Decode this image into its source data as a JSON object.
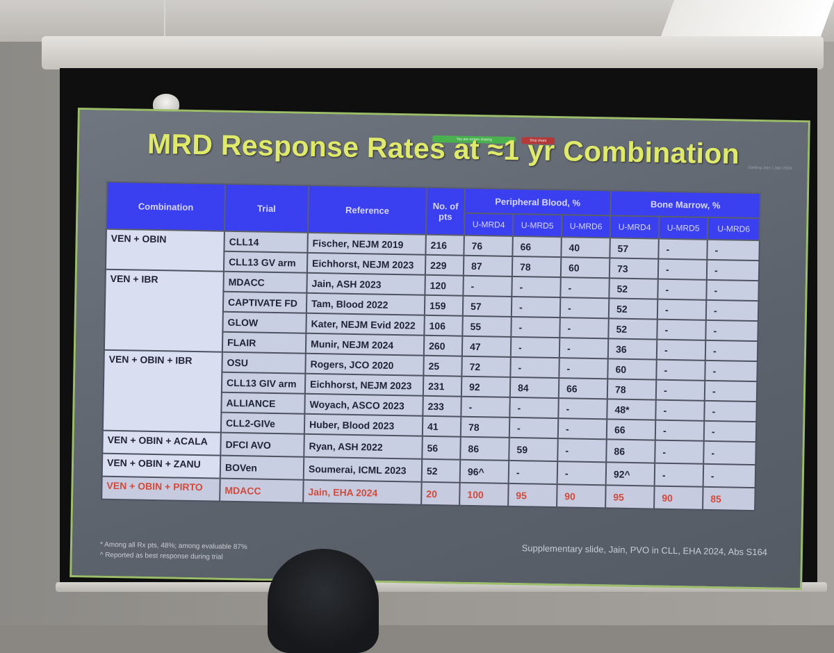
{
  "slide": {
    "title": "MRD Response Rates at ≈1 yr Combination",
    "badge_green": "You are screen sharing",
    "badge_red": "Stop share",
    "corner_note": "Getting Jain | Jain 2024",
    "footnote_1": "* Among all Rx pts, 48%; among evaluable 87%",
    "footnote_2": "^ Reported as best response during trial",
    "supplementary": "Supplementary slide, Jain, PVO in CLL, EHA 2024, Abs S164"
  },
  "table": {
    "headers": {
      "combination": "Combination",
      "trial": "Trial",
      "reference": "Reference",
      "no_of_pts": "No. of pts",
      "peripheral_blood": "Peripheral Blood, %",
      "bone_marrow": "Bone Marrow, %",
      "pb_umrd4": "U-MRD4",
      "pb_umrd5": "U-MRD5",
      "pb_umrd6": "U-MRD6",
      "bm_umrd4": "U-MRD4",
      "bm_umrd5": "U-MRD5",
      "bm_umrd6": "U-MRD6"
    },
    "groups": {
      "g1": "VEN + OBIN",
      "g2": "VEN + IBR",
      "g3": "VEN + OBIN + IBR",
      "g4": "VEN + OBIN + ACALA",
      "g5": "VEN + OBIN + ZANU",
      "g6": "VEN + OBIN + PIRTO"
    },
    "rows": {
      "r1": {
        "trial": "CLL14",
        "ref": "Fischer, NEJM 2019",
        "n": "216",
        "pb4": "76",
        "pb5": "66",
        "pb6": "40",
        "bm4": "57",
        "bm5": "-",
        "bm6": "-"
      },
      "r2": {
        "trial": "CLL13 GV arm",
        "ref": "Eichhorst, NEJM 2023",
        "n": "229",
        "pb4": "87",
        "pb5": "78",
        "pb6": "60",
        "bm4": "73",
        "bm5": "-",
        "bm6": "-"
      },
      "r3": {
        "trial": "MDACC",
        "ref": "Jain, ASH 2023",
        "n": "120",
        "pb4": "-",
        "pb5": "-",
        "pb6": "-",
        "bm4": "52",
        "bm5": "-",
        "bm6": "-"
      },
      "r4": {
        "trial": "CAPTIVATE FD",
        "ref": "Tam, Blood 2022",
        "n": "159",
        "pb4": "57",
        "pb5": "-",
        "pb6": "-",
        "bm4": "52",
        "bm5": "-",
        "bm6": "-"
      },
      "r5": {
        "trial": "GLOW",
        "ref": "Kater, NEJM Evid 2022",
        "n": "106",
        "pb4": "55",
        "pb5": "-",
        "pb6": "-",
        "bm4": "52",
        "bm5": "-",
        "bm6": "-"
      },
      "r6": {
        "trial": "FLAIR",
        "ref": "Munir, NEJM 2024",
        "n": "260",
        "pb4": "47",
        "pb5": "-",
        "pb6": "-",
        "bm4": "36",
        "bm5": "-",
        "bm6": "-"
      },
      "r7": {
        "trial": "OSU",
        "ref": "Rogers, JCO 2020",
        "n": "25",
        "pb4": "72",
        "pb5": "-",
        "pb6": "-",
        "bm4": "60",
        "bm5": "-",
        "bm6": "-"
      },
      "r8": {
        "trial": "CLL13 GIV arm",
        "ref": "Eichhorst, NEJM 2023",
        "n": "231",
        "pb4": "92",
        "pb5": "84",
        "pb6": "66",
        "bm4": "78",
        "bm5": "-",
        "bm6": "-"
      },
      "r9": {
        "trial": "ALLIANCE",
        "ref": "Woyach, ASCO 2023",
        "n": "233",
        "pb4": "-",
        "pb5": "-",
        "pb6": "-",
        "bm4": "48*",
        "bm5": "-",
        "bm6": "-"
      },
      "r10": {
        "trial": "CLL2-GIVe",
        "ref": "Huber, Blood 2023",
        "n": "41",
        "pb4": "78",
        "pb5": "-",
        "pb6": "-",
        "bm4": "66",
        "bm5": "-",
        "bm6": "-"
      },
      "r11": {
        "trial": "DFCI AVO",
        "ref": "Ryan, ASH 2022",
        "n": "56",
        "pb4": "86",
        "pb5": "59",
        "pb6": "-",
        "bm4": "86",
        "bm5": "-",
        "bm6": "-"
      },
      "r12": {
        "trial": "BOVen",
        "ref": "Soumerai, ICML 2023",
        "n": "52",
        "pb4": "96^",
        "pb5": "-",
        "pb6": "-",
        "bm4": "92^",
        "bm5": "-",
        "bm6": "-"
      },
      "r13": {
        "trial": "MDACC",
        "ref": "Jain, EHA 2024",
        "n": "20",
        "pb4": "100",
        "pb5": "95",
        "pb6": "90",
        "bm4": "95",
        "bm5": "90",
        "bm6": "85"
      }
    }
  },
  "colors": {
    "title": "#dfe96a",
    "header_bg": "#3a3ff0",
    "highlight_row": "#d24a3c"
  }
}
